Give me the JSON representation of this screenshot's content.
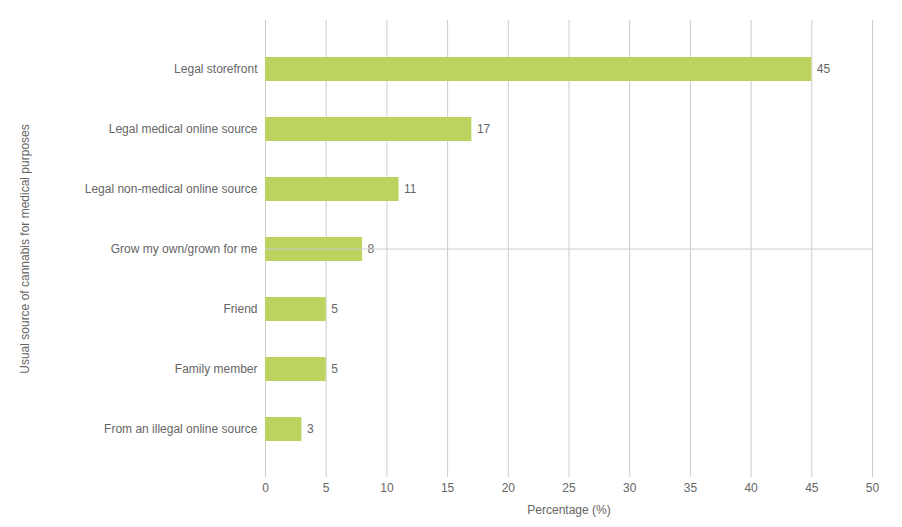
{
  "chart_data": {
    "type": "bar",
    "orientation": "horizontal",
    "categories": [
      "From an illegal online source",
      "Family member",
      "Friend",
      "Grow my own/grown for me",
      "Legal non-medical online source",
      "Legal medical online source",
      "Legal storefront"
    ],
    "values": [
      3,
      5,
      5,
      8,
      11,
      17,
      45
    ],
    "color": "#bcd35f",
    "xlabel": "Percentage (%)",
    "ylabel": "Usual source of cannabis for medical purposes",
    "xlim": [
      0,
      50
    ],
    "xticks": [
      0,
      5,
      10,
      15,
      20,
      25,
      30,
      35,
      40,
      45,
      50
    ],
    "grid": true,
    "data_labels": true
  }
}
